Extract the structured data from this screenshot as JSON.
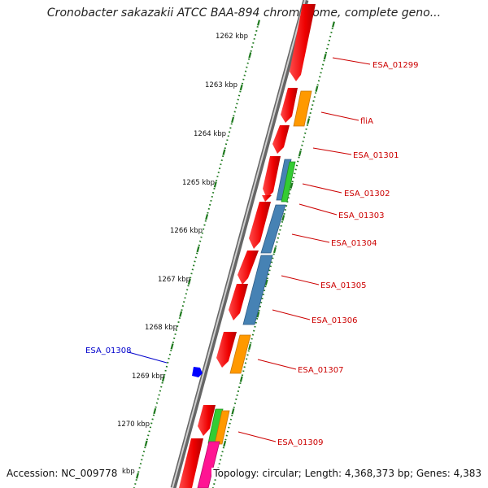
{
  "title": "Cronobacter sakazakii ATCC BAA-894 chromosome, complete geno...",
  "footer": {
    "accession": "Accession: NC_009778",
    "info": "Topology: circular; Length: 4,368,373 bp; Genes: 4,383"
  },
  "colors": {
    "tick_green": "#1f7a1f",
    "gene_red": "#ff0000",
    "gene_orange": "#ff9900",
    "gene_steel": "#4682b4",
    "gene_green": "#33cc33",
    "gene_magenta": "#ff1493",
    "gene_blue": "#0000ff",
    "label_red": "#cc0000",
    "label_blue": "#0000cc"
  },
  "kbp_labels": [
    "1262 kbp",
    "1263 kbp",
    "1264 kbp",
    "1265 kbp",
    "1266 kbp",
    "1267 kbp",
    "1268 kbp",
    "1269 kbp",
    "1270 kbp",
    "kbp"
  ],
  "gene_labels": [
    {
      "name": "ESA_01299",
      "color": "#cc0000"
    },
    {
      "name": "fliA",
      "color": "#cc0000"
    },
    {
      "name": "ESA_01301",
      "color": "#cc0000"
    },
    {
      "name": "ESA_01302",
      "color": "#cc0000"
    },
    {
      "name": "ESA_01303",
      "color": "#cc0000"
    },
    {
      "name": "ESA_01304",
      "color": "#cc0000"
    },
    {
      "name": "ESA_01305",
      "color": "#cc0000"
    },
    {
      "name": "ESA_01306",
      "color": "#cc0000"
    },
    {
      "name": "ESA_01307",
      "color": "#cc0000"
    },
    {
      "name": "ESA_01308",
      "color": "#0000cc"
    },
    {
      "name": "ESA_01309",
      "color": "#cc0000"
    }
  ]
}
